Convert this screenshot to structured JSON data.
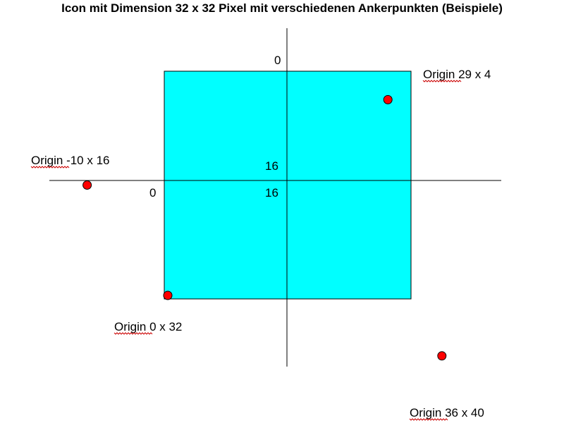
{
  "title": "Icon mit Dimension 32 x 32 Pixel mit verschiedenen Ankerpunkten (Beispiele)",
  "colors": {
    "icon_fill": "#00ffff",
    "anchor_point": "#ff0000",
    "axis": "#000000"
  },
  "axis_labels": {
    "top": "0",
    "center_above": "16",
    "center_below": "16",
    "left": "0"
  },
  "anchors": [
    {
      "label": "Origin 29 x 4",
      "x": 29,
      "y": 4
    },
    {
      "label": "Origin -10 x 16",
      "x": -10,
      "y": 16
    },
    {
      "label": "Origin 0 x 32",
      "x": 0,
      "y": 32
    },
    {
      "label": "Origin 36 x 40",
      "x": 36,
      "y": 40
    }
  ]
}
